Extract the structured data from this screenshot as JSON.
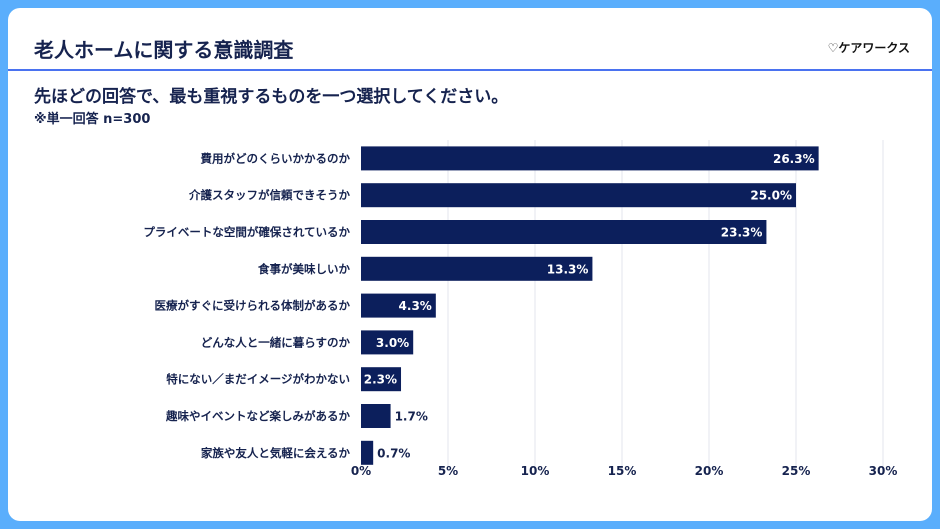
{
  "header": {
    "title": "老人ホームに関する意識調査",
    "logo": "♡ケアワークス"
  },
  "question": "先ほどの回答で、最も重視するものを一つ選択してください。",
  "note": "※単一回答 n=300",
  "colors": {
    "bar": "#0c1f5c",
    "background": "#5aaefc",
    "separator": "#4a72f0"
  },
  "chart_data": {
    "type": "bar",
    "orientation": "horizontal",
    "categories": [
      "費用がどのくらいかかるのか",
      "介護スタッフが信頼できそうか",
      "プライベートな空間が確保されているか",
      "食事が美味しいか",
      "医療がすぐに受けられる体制があるか",
      "どんな人と一緒に暮らすのか",
      "特にない／まだイメージがわかない",
      "趣味やイベントなど楽しみがあるか",
      "家族や友人と気軽に会えるか"
    ],
    "values": [
      26.3,
      25.0,
      23.3,
      13.3,
      4.3,
      3.0,
      2.3,
      1.7,
      0.7
    ],
    "data_labels": [
      "26.3%",
      "25.0%",
      "23.3%",
      "13.3%",
      "4.3%",
      "3.0%",
      "2.3%",
      "1.7%",
      "0.7%"
    ],
    "xlim": [
      0,
      30
    ],
    "ticks": [
      "0%",
      "5%",
      "10%",
      "15%",
      "20%",
      "25%",
      "30%"
    ],
    "grid": true
  }
}
